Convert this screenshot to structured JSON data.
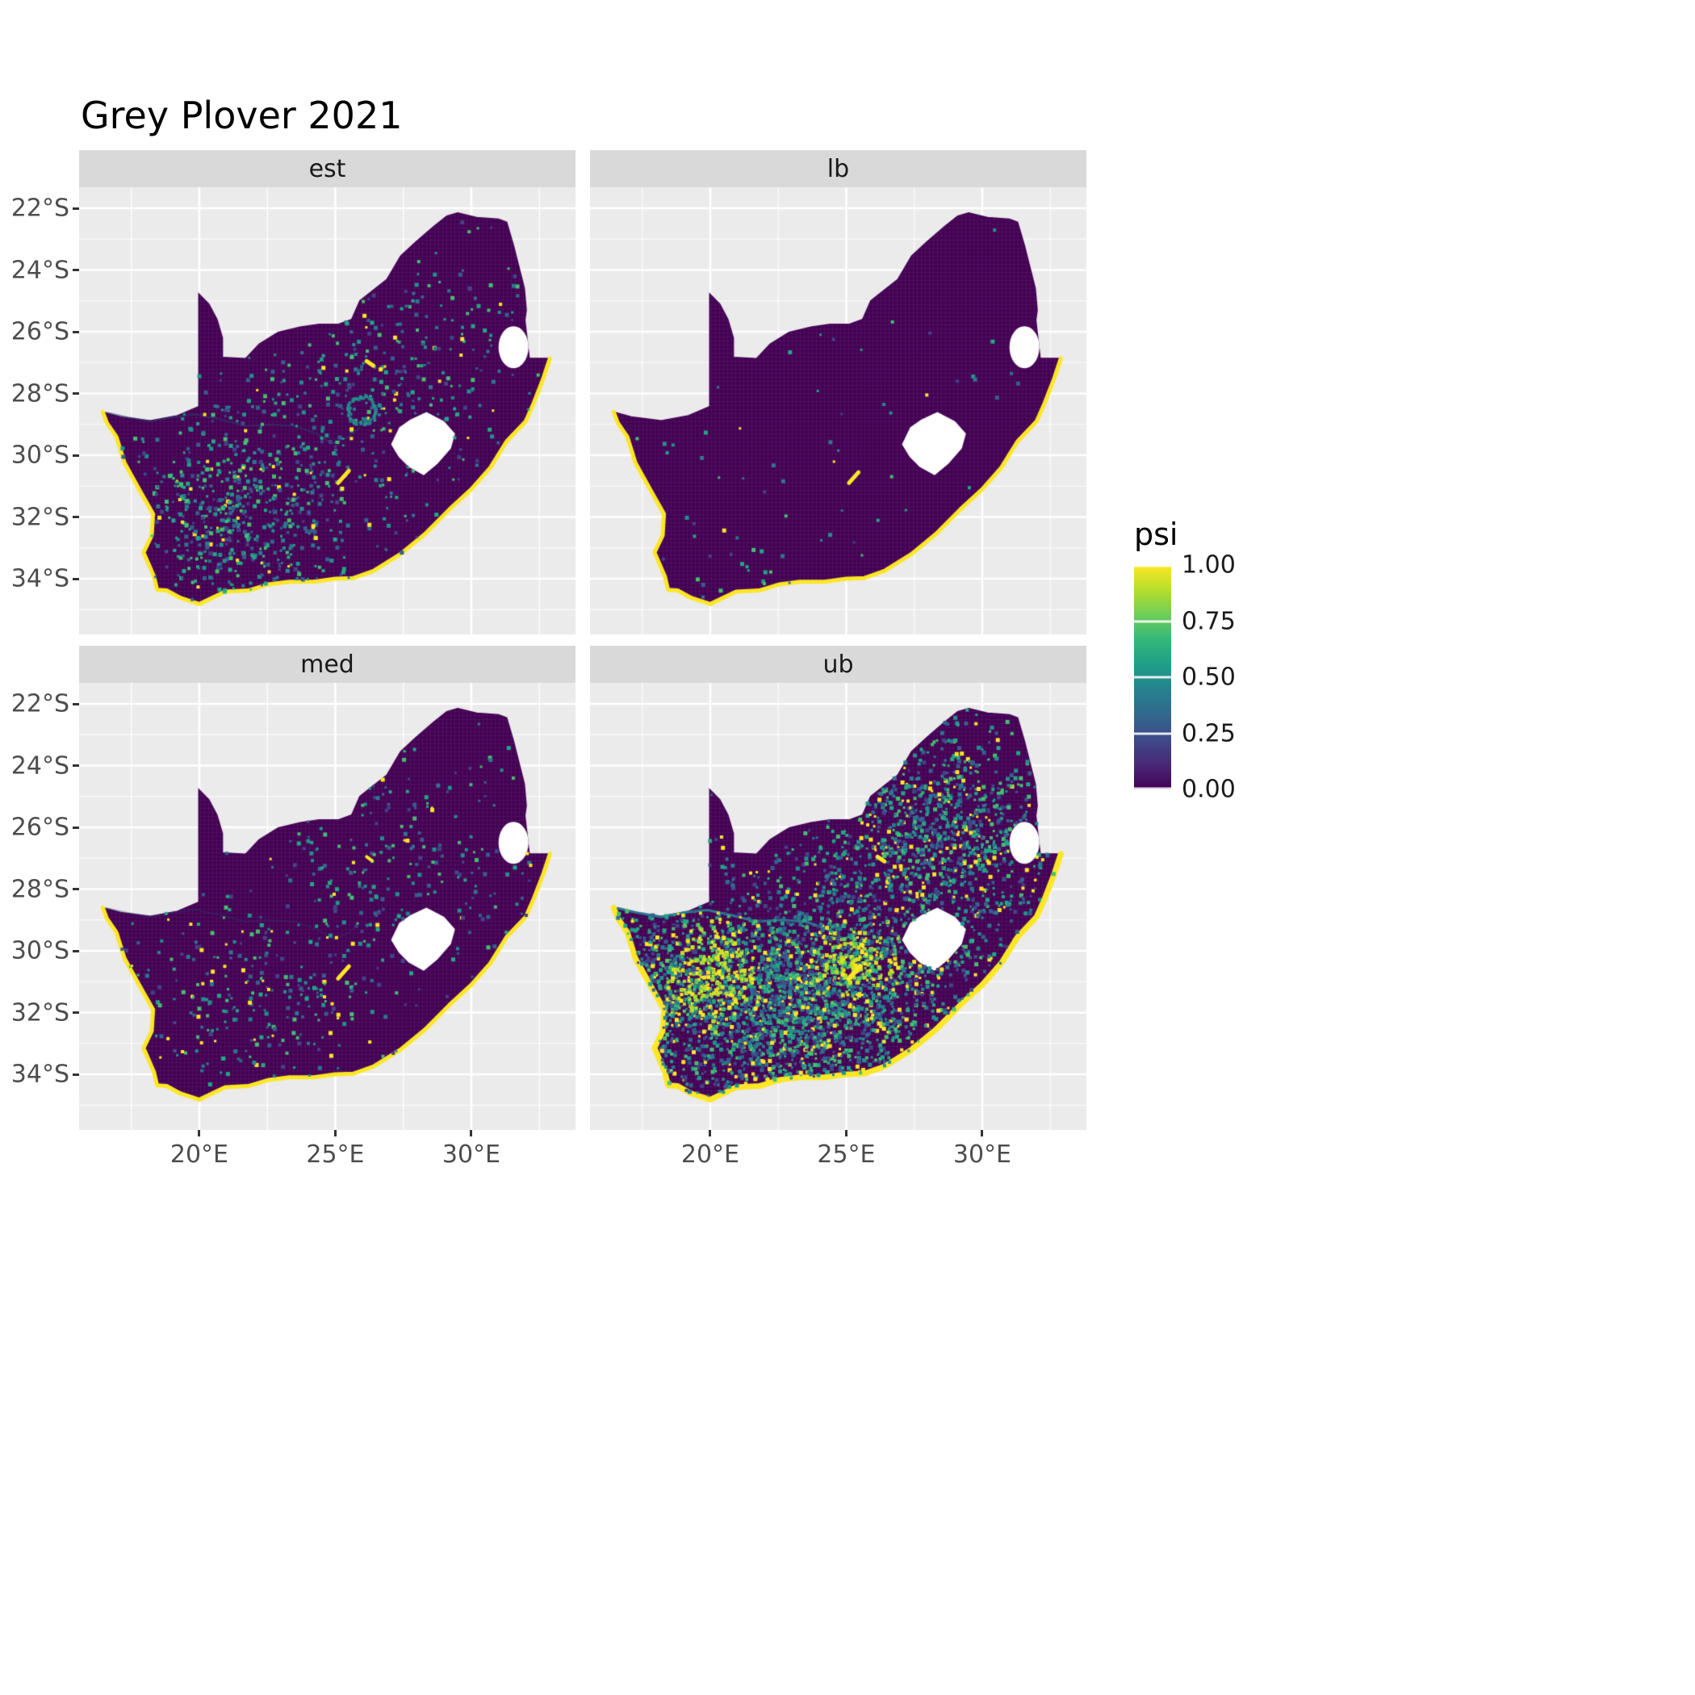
{
  "title": "Grey Plover 2021",
  "legend": {
    "title": "psi",
    "labels": [
      "1.00",
      "0.75",
      "0.50",
      "0.25",
      "0.00"
    ],
    "gradient_stops_bottom_to_top": [
      "#440154",
      "#482878",
      "#3e4a89",
      "#31688e",
      "#26828e",
      "#1f9e89",
      "#35b779",
      "#6ece58",
      "#b5de2b",
      "#fde725"
    ]
  },
  "axes": {
    "x": {
      "labels": [
        "20°E",
        "25°E",
        "30°E"
      ],
      "values": [
        20,
        25,
        30
      ]
    },
    "y": {
      "labels": [
        "22°S",
        "24°S",
        "26°S",
        "28°S",
        "30°S",
        "32°S",
        "34°S"
      ],
      "values": [
        22,
        24,
        26,
        28,
        30,
        32,
        34
      ]
    }
  },
  "chart_data": {
    "type": "heatmap",
    "subtype": "faceted raster map of occupancy probability over South Africa",
    "region": "South Africa",
    "variable": "psi",
    "value_domain": [
      0,
      1
    ],
    "colormap": "viridis",
    "facets": [
      "est",
      "lb",
      "med",
      "ub"
    ],
    "extent": {
      "lon_min": 15.58,
      "lon_max": 33.83,
      "lat_min": -35.8,
      "lat_max": -21.32
    },
    "grid": {
      "x_major": [
        20,
        25,
        30
      ],
      "x_minor": [
        17.5,
        22.5,
        27.5,
        32.5
      ],
      "y_major": [
        22,
        24,
        26,
        28,
        30,
        32,
        34
      ],
      "y_minor": [
        23,
        25,
        27,
        29,
        31,
        33,
        35
      ]
    },
    "palette": {
      "land": "#440154",
      "coast": "#fde725",
      "na": "#ffffff",
      "panel_bg": "#ebebeb",
      "strip_bg": "#d9d9d9",
      "grid": "#ffffff",
      "base": [
        "#414487",
        "#355f8d",
        "#2a788e",
        "#21918c",
        "#22a884",
        "#44bf70"
      ],
      "hot": [
        "#fde725",
        "#d8e219",
        "#addc30",
        "#5ec962"
      ],
      "yellow": "#fde725"
    },
    "facet_patterns": {
      "est": {
        "seed": 11,
        "coast_width": 5,
        "yellow_fraction": 0.07,
        "river": {
          "color": "rgba(40,70,110,0.55)",
          "width": 2
        },
        "ring": {
          "lon": 26.0,
          "lat": 28.55,
          "r": 0.5,
          "n": 46
        },
        "clusters": [
          {
            "lon": 21.8,
            "lat": 31.6,
            "slon": 2.2,
            "slat": 1.4,
            "n": 520
          },
          {
            "lon": 24.6,
            "lat": 29.6,
            "slon": 4.2,
            "slat": 2.8,
            "n": 300
          },
          {
            "lon": 26.8,
            "lat": 27.2,
            "slon": 1.9,
            "slat": 1.6,
            "n": 170
          },
          {
            "lon": 20.6,
            "lat": 33.6,
            "slon": 1.6,
            "slat": 0.9,
            "n": 90
          },
          {
            "lon": 29.3,
            "lat": 25.6,
            "slon": 2.4,
            "slat": 2.2,
            "n": 90
          }
        ],
        "dams": [
          {
            "x1": 25.1,
            "y1": 30.9,
            "x2": 25.5,
            "y2": 30.5,
            "w": 5,
            "color": "#fde725"
          },
          {
            "x1": 26.15,
            "y1": 26.95,
            "x2": 26.4,
            "y2": 27.1,
            "w": 5,
            "color": "#fde725"
          }
        ]
      },
      "lb": {
        "seed": 22,
        "coast_width": 5,
        "yellow_fraction": 0.05,
        "river": null,
        "ring": null,
        "clusters": [
          {
            "lon": 24.0,
            "lat": 29.5,
            "slon": 5.0,
            "slat": 3.5,
            "n": 80
          },
          {
            "lon": 20.5,
            "lat": 33.8,
            "slon": 1.5,
            "slat": 0.8,
            "n": 30
          }
        ],
        "dams": [
          {
            "x1": 25.1,
            "y1": 30.9,
            "x2": 25.45,
            "y2": 30.55,
            "w": 5,
            "color": "#fde725"
          }
        ]
      },
      "med": {
        "seed": 33,
        "coast_width": 5,
        "yellow_fraction": 0.1,
        "river": {
          "color": "rgba(40,70,110,0.35)",
          "width": 2
        },
        "ring": null,
        "clusters": [
          {
            "lon": 21.8,
            "lat": 31.6,
            "slon": 2.3,
            "slat": 1.5,
            "n": 230
          },
          {
            "lon": 24.6,
            "lat": 29.3,
            "slon": 4.5,
            "slat": 3.0,
            "n": 220
          },
          {
            "lon": 27.0,
            "lat": 26.8,
            "slon": 2.0,
            "slat": 1.6,
            "n": 120
          },
          {
            "lon": 29.5,
            "lat": 25.8,
            "slon": 2.2,
            "slat": 1.8,
            "n": 70
          }
        ],
        "dams": [
          {
            "x1": 25.1,
            "y1": 30.9,
            "x2": 25.5,
            "y2": 30.5,
            "w": 5,
            "color": "#fde725"
          },
          {
            "x1": 26.15,
            "y1": 26.95,
            "x2": 26.35,
            "y2": 27.08,
            "w": 4,
            "color": "#fde725"
          }
        ]
      },
      "ub": {
        "seed": 44,
        "coast_width": 7,
        "yellow_fraction": 0.12,
        "river": {
          "color": "#2a788e",
          "width": 3
        },
        "ring": null,
        "clusters": [
          {
            "lon": 21.8,
            "lat": 31.8,
            "slon": 2.4,
            "slat": 1.5,
            "n": 1500
          },
          {
            "lon": 24.8,
            "lat": 31.2,
            "slon": 2.8,
            "slat": 1.7,
            "n": 1300
          },
          {
            "lon": 27.8,
            "lat": 26.4,
            "slon": 2.3,
            "slat": 1.9,
            "n": 1000
          },
          {
            "lon": 24.5,
            "lat": 29.2,
            "slon": 5.0,
            "slat": 4.0,
            "n": 800
          },
          {
            "lon": 17.8,
            "lat": 30.3,
            "slon": 1.0,
            "slat": 1.9,
            "n": 300
          },
          {
            "lon": 20.1,
            "lat": 30.7,
            "slon": 0.9,
            "slat": 0.8,
            "n": 260,
            "palette": "hot"
          },
          {
            "lon": 25.2,
            "lat": 30.4,
            "slon": 0.7,
            "slat": 0.5,
            "n": 160,
            "palette": "hot"
          },
          {
            "lon": 29.8,
            "lat": 26.0,
            "slon": 1.6,
            "slat": 1.2,
            "n": 220
          }
        ],
        "dams": [
          {
            "x1": 25.1,
            "y1": 30.9,
            "x2": 25.5,
            "y2": 30.5,
            "w": 6,
            "color": "#fde725"
          },
          {
            "x1": 26.15,
            "y1": 26.95,
            "x2": 26.4,
            "y2": 27.1,
            "w": 5,
            "color": "#fde725"
          }
        ]
      }
    }
  }
}
